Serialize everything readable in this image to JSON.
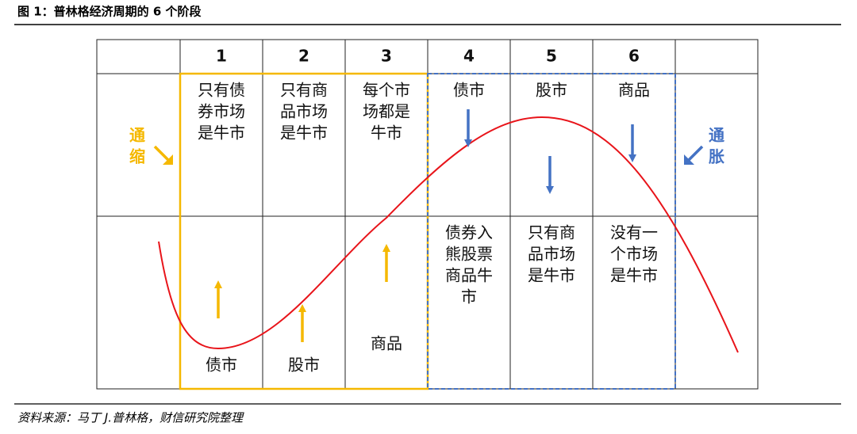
{
  "title": "图 1：普林格经济周期的 6 个阶段",
  "table": {
    "header": [
      "1",
      "2",
      "3",
      "4",
      "5",
      "6"
    ],
    "upper": [
      [
        "只有债",
        "券市场",
        "是牛市"
      ],
      [
        "只有商",
        "品市场",
        "是牛市"
      ],
      [
        "每个市",
        "场都是",
        "牛市"
      ],
      [
        "债市"
      ],
      [
        "股市"
      ],
      [
        "商品"
      ]
    ],
    "lower": [
      [
        "债市"
      ],
      [
        "股市"
      ],
      [
        "商品"
      ],
      [
        "债券入",
        "熊股票",
        "商品牛",
        "市"
      ],
      [
        "只有商",
        "品市场",
        "是牛市"
      ],
      [
        "没有一",
        "个市场",
        "是牛市"
      ]
    ]
  },
  "labels": {
    "deflation": [
      "通",
      "缩"
    ],
    "inflation": [
      "通",
      "胀"
    ]
  },
  "source": "资料来源：马丁 J.普林格，财信研究院整理"
}
